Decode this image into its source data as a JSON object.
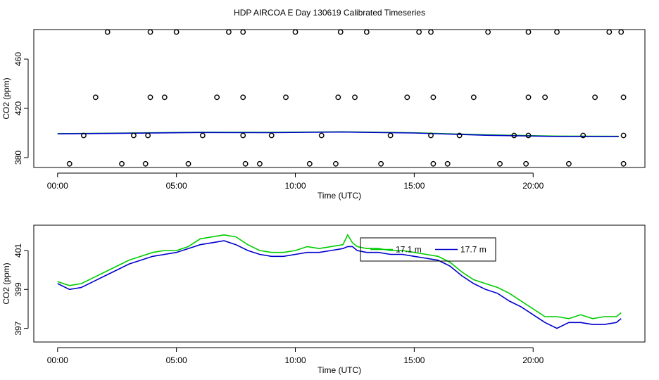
{
  "title": "HDP AIRCOA E  Day 130619  Calibrated Timeseries",
  "chart_data": [
    {
      "type": "scatter",
      "xlabel": "Time (UTC)",
      "ylabel": "CO2 (ppm)",
      "xlim": [
        -1.0,
        24.7
      ],
      "ylim": [
        372,
        484
      ],
      "xticks": [
        0,
        5,
        10,
        15,
        20
      ],
      "xtick_labels": [
        "00:00",
        "05:00",
        "10:00",
        "15:00",
        "20:00"
      ],
      "yticks": [
        380,
        420,
        460
      ],
      "ytick_labels": [
        "380",
        "420",
        "460"
      ],
      "calibration_points": {
        "x": [
          0.5,
          2.7,
          3.7,
          5.5,
          7.9,
          8.5,
          10.6,
          11.7,
          13.6,
          15.8,
          16.4,
          18.6,
          19.7,
          21.5,
          23.8,
          1.1,
          3.2,
          3.8,
          6.1,
          7.8,
          9.0,
          11.1,
          14.0,
          15.7,
          16.9,
          19.2,
          19.8,
          22.1,
          23.8,
          1.6,
          3.9,
          4.5,
          6.7,
          7.8,
          9.6,
          11.8,
          12.5,
          14.7,
          15.8,
          17.5,
          19.8,
          20.5,
          22.6,
          23.8,
          2.1,
          3.9,
          5.0,
          7.2,
          7.8,
          10.0,
          11.9,
          13.0,
          15.2,
          15.7,
          18.1,
          19.8,
          21.0,
          23.2,
          23.7
        ],
        "y": [
          375,
          375,
          375,
          375,
          375,
          375,
          375,
          375,
          375,
          375,
          375,
          375,
          375,
          375,
          375,
          398,
          398,
          398,
          398,
          398,
          398,
          398,
          398,
          398,
          398,
          398,
          398,
          398,
          398,
          429,
          429,
          429,
          429,
          429,
          429,
          429,
          429,
          429,
          429,
          429,
          429,
          429,
          429,
          429,
          482,
          482,
          482,
          482,
          482,
          482,
          482,
          482,
          482,
          482,
          482,
          482,
          482,
          482,
          482
        ]
      },
      "series": [
        {
          "color": "#00cc00",
          "x": [
            0,
            3,
            6,
            9,
            12,
            15,
            18,
            21,
            23.6
          ],
          "y": [
            399.5,
            400.0,
            400.6,
            400.5,
            401.0,
            400.2,
            398.5,
            397.5,
            397.3
          ]
        },
        {
          "color": "#0000cc",
          "x": [
            0,
            3,
            6,
            9,
            12,
            15,
            18,
            21,
            23.6
          ],
          "y": [
            399.3,
            399.8,
            400.4,
            400.3,
            400.8,
            400.0,
            398.2,
            397.2,
            397.1
          ]
        }
      ]
    },
    {
      "type": "line",
      "xlabel": "Time (UTC)",
      "ylabel": "CO2 (ppm)",
      "xlim": [
        -1.0,
        24.7
      ],
      "ylim": [
        396.3,
        402.3
      ],
      "xticks": [
        0,
        5,
        10,
        15,
        20
      ],
      "xtick_labels": [
        "00:00",
        "05:00",
        "10:00",
        "15:00",
        "20:00"
      ],
      "yticks": [
        397,
        399,
        401
      ],
      "ytick_labels": [
        "397",
        "399",
        "401"
      ],
      "legend": {
        "placement": "top-center"
      },
      "series": [
        {
          "name": "17.1 m",
          "color": "#00cc00",
          "x": [
            0,
            0.5,
            1,
            1.5,
            2,
            2.5,
            3,
            3.5,
            4,
            4.5,
            5,
            5.5,
            6,
            6.5,
            7,
            7.5,
            8,
            8.5,
            9,
            9.5,
            10,
            10.5,
            11,
            11.5,
            12,
            12.2,
            12.4,
            12.6,
            13,
            13.5,
            14,
            14.5,
            15,
            15.5,
            16,
            16.5,
            17,
            17.5,
            18,
            18.5,
            19,
            19.5,
            20,
            20.5,
            21,
            21.5,
            22,
            22.5,
            23,
            23.5,
            23.7
          ],
          "y": [
            399.4,
            399.2,
            399.3,
            399.6,
            399.9,
            400.2,
            400.5,
            400.7,
            400.9,
            401.0,
            401.0,
            401.2,
            401.6,
            401.7,
            401.8,
            401.7,
            401.3,
            401.0,
            400.9,
            400.9,
            401.0,
            401.2,
            401.1,
            401.2,
            401.3,
            401.8,
            401.4,
            401.2,
            401.1,
            401.1,
            401.0,
            401.0,
            400.9,
            400.8,
            400.7,
            400.4,
            399.9,
            399.5,
            399.3,
            399.1,
            398.8,
            398.4,
            398.0,
            397.6,
            397.6,
            397.5,
            397.7,
            397.5,
            397.6,
            397.6,
            397.8
          ]
        },
        {
          "name": "17.7 m",
          "color": "#0000cc",
          "x": [
            0,
            0.5,
            1,
            1.5,
            2,
            2.5,
            3,
            3.5,
            4,
            4.5,
            5,
            5.5,
            6,
            6.5,
            7,
            7.5,
            8,
            8.5,
            9,
            9.5,
            10,
            10.5,
            11,
            11.5,
            12,
            12.2,
            12.4,
            12.6,
            13,
            13.5,
            14,
            14.5,
            15,
            15.5,
            16,
            16.5,
            17,
            17.5,
            18,
            18.5,
            19,
            19.5,
            20,
            20.5,
            21,
            21.5,
            22,
            22.5,
            23,
            23.5,
            23.7
          ],
          "y": [
            399.3,
            399.0,
            399.1,
            399.4,
            399.7,
            400.0,
            400.3,
            400.5,
            400.7,
            400.8,
            400.9,
            401.1,
            401.3,
            401.4,
            401.5,
            401.3,
            401.0,
            400.8,
            400.7,
            400.7,
            400.8,
            400.9,
            400.9,
            401.0,
            401.1,
            401.2,
            401.2,
            401.0,
            400.9,
            400.9,
            400.8,
            400.8,
            400.7,
            400.6,
            400.5,
            400.2,
            399.7,
            399.3,
            399.0,
            398.8,
            398.4,
            398.1,
            397.7,
            397.3,
            397.0,
            397.3,
            397.3,
            397.2,
            397.2,
            397.3,
            397.5
          ]
        }
      ]
    }
  ]
}
